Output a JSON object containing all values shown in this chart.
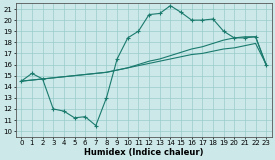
{
  "xlabel": "Humidex (Indice chaleur)",
  "bg_color": "#cce8e8",
  "grid_color": "#99cccc",
  "line_color": "#1a7a6e",
  "xlim": [
    -0.5,
    23.5
  ],
  "ylim": [
    9.5,
    21.5
  ],
  "xticks": [
    0,
    1,
    2,
    3,
    4,
    5,
    6,
    7,
    8,
    9,
    10,
    11,
    12,
    13,
    14,
    15,
    16,
    17,
    18,
    19,
    20,
    21,
    22,
    23
  ],
  "yticks": [
    10,
    11,
    12,
    13,
    14,
    15,
    16,
    17,
    18,
    19,
    20,
    21
  ],
  "line1_x": [
    0,
    1,
    2,
    3,
    4,
    5,
    6,
    7,
    8,
    9,
    10,
    11,
    12,
    13,
    14,
    15,
    16,
    17,
    18,
    19,
    20,
    21,
    22,
    23
  ],
  "line1_y": [
    14.5,
    15.2,
    14.7,
    12.0,
    11.8,
    11.2,
    11.3,
    10.5,
    13.0,
    16.5,
    18.4,
    19.0,
    20.5,
    20.6,
    21.3,
    20.7,
    20.0,
    20.0,
    20.1,
    19.0,
    18.4,
    18.4,
    18.5,
    16.0
  ],
  "line2_x": [
    0,
    1,
    2,
    3,
    4,
    5,
    6,
    7,
    8,
    9,
    10,
    11,
    12,
    13,
    14,
    15,
    16,
    17,
    18,
    19,
    20,
    21,
    22,
    23
  ],
  "line2_y": [
    14.5,
    14.6,
    14.7,
    14.8,
    14.9,
    15.0,
    15.1,
    15.2,
    15.3,
    15.5,
    15.7,
    15.9,
    16.1,
    16.3,
    16.5,
    16.7,
    16.9,
    17.0,
    17.2,
    17.4,
    17.5,
    17.7,
    17.9,
    16.0
  ],
  "line3_x": [
    0,
    1,
    2,
    3,
    4,
    5,
    6,
    7,
    8,
    9,
    10,
    11,
    12,
    13,
    14,
    15,
    16,
    17,
    18,
    19,
    20,
    21,
    22,
    23
  ],
  "line3_y": [
    14.5,
    14.6,
    14.7,
    14.8,
    14.9,
    15.0,
    15.1,
    15.2,
    15.3,
    15.5,
    15.7,
    16.0,
    16.3,
    16.5,
    16.8,
    17.1,
    17.4,
    17.6,
    17.9,
    18.2,
    18.4,
    18.5,
    18.5,
    15.9
  ]
}
